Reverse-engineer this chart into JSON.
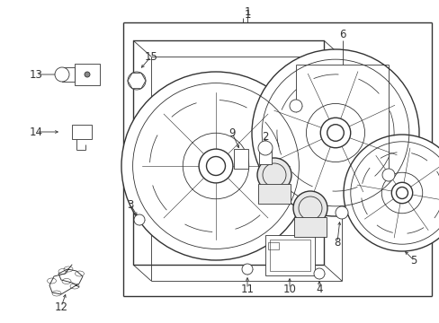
{
  "bg_color": "#ffffff",
  "line_color": "#333333",
  "lw": 1.0,
  "tlw": 0.6,
  "fig_width": 4.89,
  "fig_height": 3.6,
  "dpi": 100,
  "font_size": 8.5
}
